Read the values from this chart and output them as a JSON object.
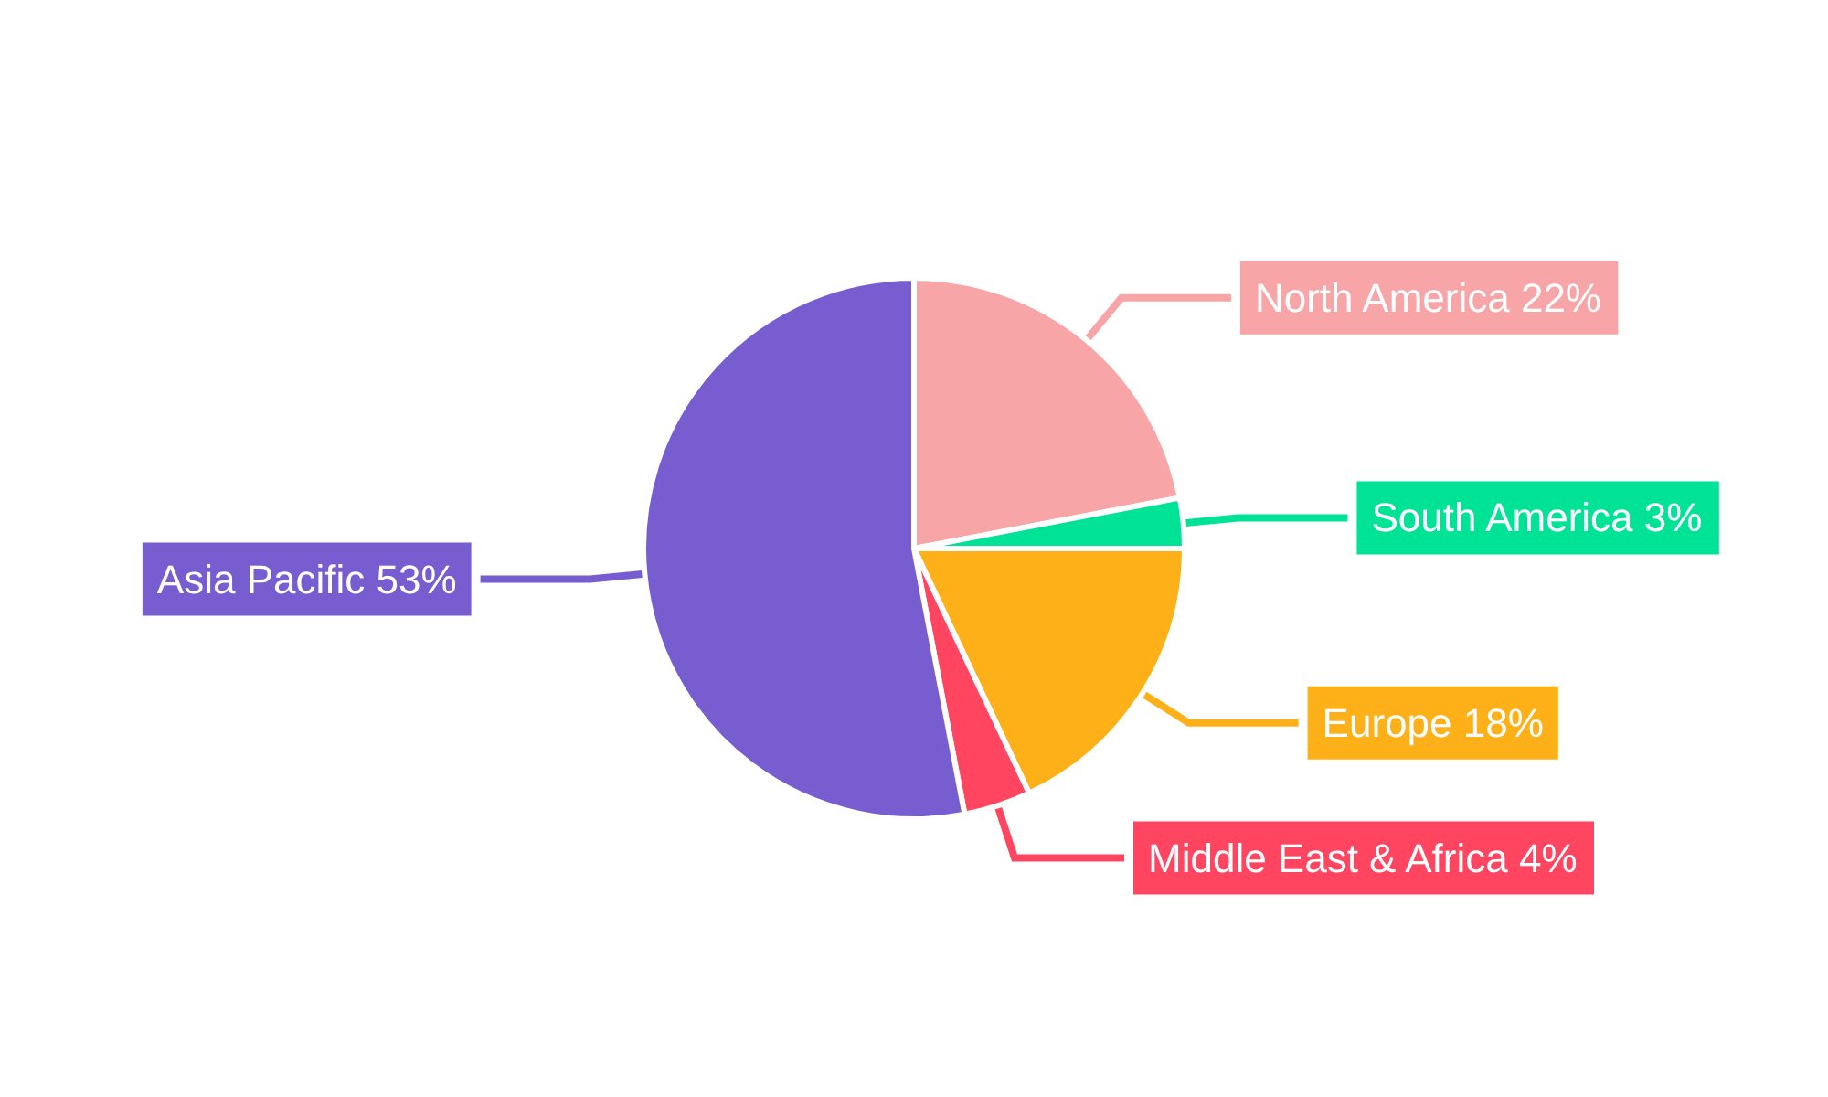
{
  "chart_data": {
    "type": "pie",
    "categories": [
      "North America",
      "South America",
      "Europe",
      "Middle East & Africa",
      "Asia Pacific"
    ],
    "values": [
      22,
      3,
      18,
      4,
      53
    ],
    "colors": [
      "#f8a5a7",
      "#00e396",
      "#feb019",
      "#ff4560",
      "#775dd0"
    ],
    "value_labels": [
      "22%",
      "3%",
      "18%",
      "4%",
      "53%"
    ],
    "legend": false
  }
}
